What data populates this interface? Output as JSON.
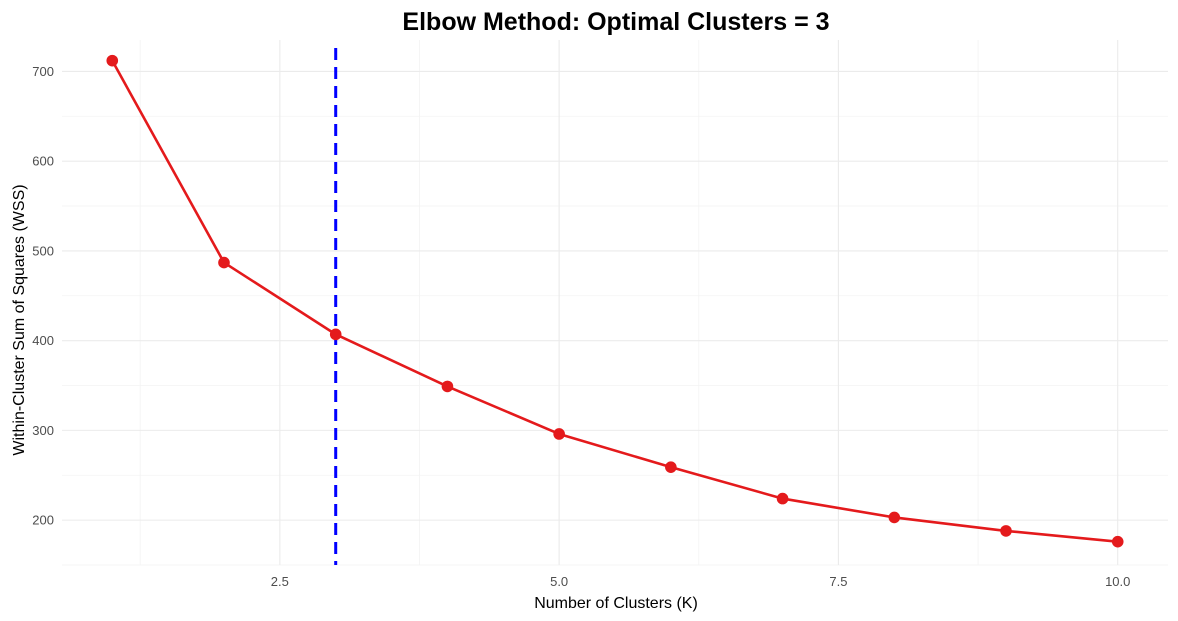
{
  "chart_data": {
    "type": "line",
    "title": "Elbow Method: Optimal Clusters = 3",
    "xlabel": "Number of Clusters (K)",
    "ylabel": "Within-Cluster Sum of Squares (WSS)",
    "xlim": [
      0.55,
      10.45
    ],
    "ylim": [
      150,
      735
    ],
    "x_ticks": [
      2.5,
      5.0,
      7.5,
      10.0
    ],
    "x_tick_labels": [
      "2.5",
      "5.0",
      "7.5",
      "10.0"
    ],
    "y_ticks": [
      200,
      300,
      400,
      500,
      600,
      700
    ],
    "y_tick_labels": [
      "200",
      "300",
      "400",
      "500",
      "600",
      "700"
    ],
    "grid": true,
    "series": [
      {
        "x": [
          1,
          2,
          3,
          4,
          5,
          6,
          7,
          8,
          9,
          10
        ],
        "y": [
          712,
          487,
          407,
          349,
          296,
          259,
          224,
          203,
          188,
          176
        ],
        "color": "#e41a1c",
        "marker": "circle"
      }
    ],
    "reference_line": {
      "orientation": "vertical",
      "x": 3,
      "color": "#0000ff",
      "style": "dashed"
    }
  }
}
